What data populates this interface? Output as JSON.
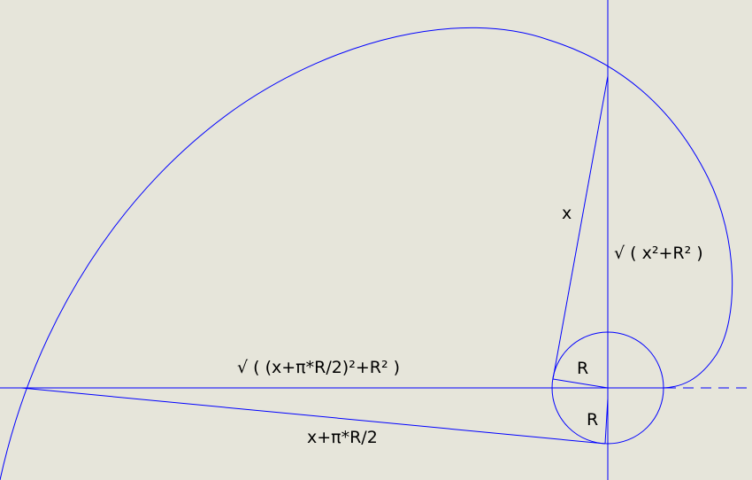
{
  "labels": {
    "x": "x",
    "sqrt_x2_r2": "√ ( x²+R² )",
    "sqrt_long": "√ ( (x+π*R/2)²+R² )",
    "x_plus_pi_r_half": "x+π*R/2",
    "r_upper": "R",
    "r_lower": "R"
  },
  "colors": {
    "background": "#e6e5da",
    "stroke": "#0000ff",
    "text": "#000000"
  }
}
